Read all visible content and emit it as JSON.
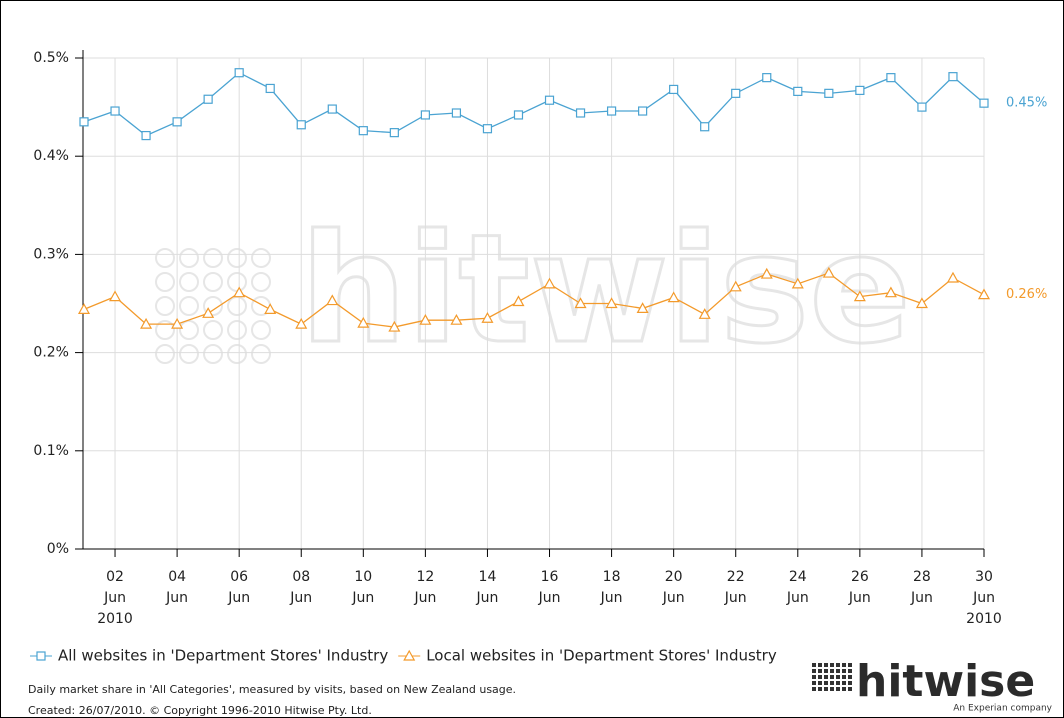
{
  "chart_data": {
    "type": "line",
    "categories": [
      null,
      [
        "02",
        "Jun",
        "2010"
      ],
      null,
      [
        "04",
        "Jun"
      ],
      null,
      [
        "06",
        "Jun"
      ],
      null,
      [
        "08",
        "Jun"
      ],
      null,
      [
        "10",
        "Jun"
      ],
      null,
      [
        "12",
        "Jun"
      ],
      null,
      [
        "14",
        "Jun"
      ],
      null,
      [
        "16",
        "Jun"
      ],
      null,
      [
        "18",
        "Jun"
      ],
      null,
      [
        "20",
        "Jun"
      ],
      null,
      [
        "22",
        "Jun"
      ],
      null,
      [
        "24",
        "Jun"
      ],
      null,
      [
        "26",
        "Jun"
      ],
      null,
      [
        "28",
        "Jun"
      ],
      null,
      [
        "30",
        "Jun",
        "2010"
      ]
    ],
    "series": [
      {
        "name": "All websites in 'Department Stores' Industry",
        "color": "#4aa3d2",
        "marker": "square",
        "end_label": "0.45%",
        "values": [
          0.435,
          0.446,
          0.421,
          0.435,
          0.458,
          0.485,
          0.469,
          0.432,
          0.448,
          0.426,
          0.424,
          0.442,
          0.444,
          0.428,
          0.442,
          0.457,
          0.444,
          0.446,
          0.446,
          0.468,
          0.43,
          0.464,
          0.48,
          0.466,
          0.464,
          0.467,
          0.48,
          0.45,
          0.481,
          0.454
        ]
      },
      {
        "name": "Local websites in 'Department Stores' Industry",
        "color": "#f39a2b",
        "marker": "triangle",
        "end_label": "0.26%",
        "values": [
          0.244,
          0.257,
          0.229,
          0.229,
          0.24,
          0.261,
          0.244,
          0.229,
          0.253,
          0.23,
          0.226,
          0.233,
          0.233,
          0.235,
          0.252,
          0.27,
          0.25,
          0.25,
          0.245,
          0.256,
          0.239,
          0.267,
          0.28,
          0.27,
          0.281,
          0.257,
          0.261,
          0.25,
          0.276,
          0.259
        ]
      }
    ],
    "ylim": [
      0,
      0.5
    ],
    "yticks": [
      {
        "value": 0,
        "label": "0%"
      },
      {
        "value": 0.1,
        "label": "0.1%"
      },
      {
        "value": 0.2,
        "label": "0.2%"
      },
      {
        "value": 0.3,
        "label": "0.3%"
      },
      {
        "value": 0.4,
        "label": "0.4%"
      },
      {
        "value": 0.5,
        "label": "0.5%"
      }
    ],
    "grid": true,
    "watermark": "hitwise",
    "footnotes": [
      "Daily market share in 'All Categories', measured by visits, based on New Zealand usage.",
      "Created: 26/07/2010. © Copyright 1996-2010 Hitwise Pty. Ltd."
    ],
    "logo": {
      "name": "hitwise",
      "tagline": "An Experian company"
    }
  }
}
